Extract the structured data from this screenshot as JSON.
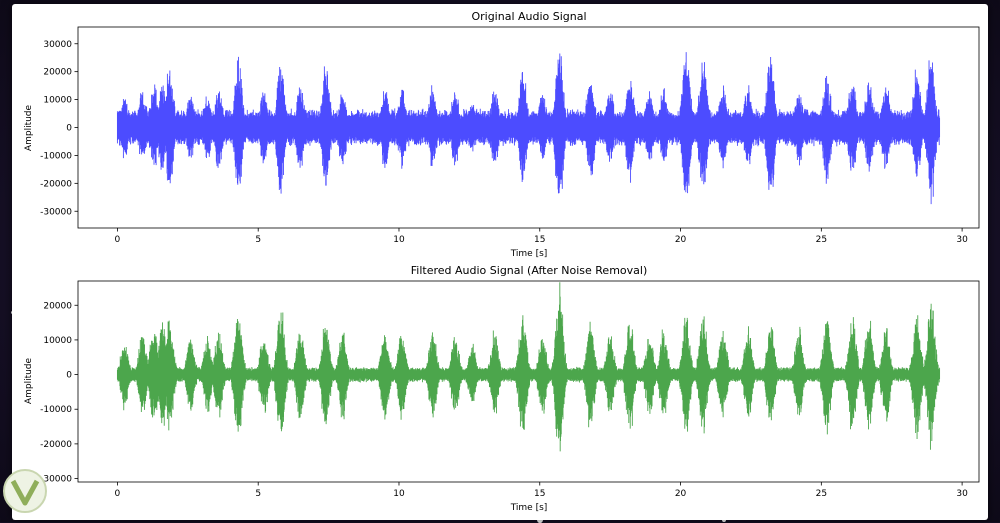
{
  "chart_data": [
    {
      "type": "line",
      "title": "Original Audio Signal",
      "xlabel": "Time [s]",
      "ylabel": "Amplitude",
      "xlim": [
        -1.4,
        30.6
      ],
      "ylim": [
        -36000,
        36000
      ],
      "xticks": [
        0,
        5,
        10,
        15,
        20,
        25,
        30
      ],
      "yticks": [
        -30000,
        -20000,
        -10000,
        0,
        10000,
        20000,
        30000
      ],
      "color": "#0000ff",
      "line_opacity": 0.7,
      "duration_s": 29.2,
      "noise_floor": 6000,
      "bursts": [
        {
          "t": 0.25,
          "amp": 12500
        },
        {
          "t": 0.9,
          "amp": 15000
        },
        {
          "t": 1.3,
          "amp": 17000
        },
        {
          "t": 1.6,
          "amp": 18500
        },
        {
          "t": 1.85,
          "amp": 25000
        },
        {
          "t": 2.6,
          "amp": 14500
        },
        {
          "t": 3.2,
          "amp": 14000
        },
        {
          "t": 3.6,
          "amp": 16000
        },
        {
          "t": 4.3,
          "amp": 26000
        },
        {
          "t": 5.2,
          "amp": 15000
        },
        {
          "t": 5.8,
          "amp": 26500
        },
        {
          "t": 6.5,
          "amp": 17000
        },
        {
          "t": 7.4,
          "amp": 25000
        },
        {
          "t": 8.0,
          "amp": 16000
        },
        {
          "t": 9.5,
          "amp": 17000
        },
        {
          "t": 10.1,
          "amp": 15500
        },
        {
          "t": 11.2,
          "amp": 17000
        },
        {
          "t": 12.0,
          "amp": 16000
        },
        {
          "t": 12.6,
          "amp": 11000
        },
        {
          "t": 13.4,
          "amp": 16500
        },
        {
          "t": 14.4,
          "amp": 24500
        },
        {
          "t": 15.1,
          "amp": 14000
        },
        {
          "t": 15.7,
          "amp": 33000
        },
        {
          "t": 16.8,
          "amp": 22000
        },
        {
          "t": 17.5,
          "amp": 15000
        },
        {
          "t": 18.2,
          "amp": 22000
        },
        {
          "t": 18.9,
          "amp": 14500
        },
        {
          "t": 19.4,
          "amp": 16000
        },
        {
          "t": 20.2,
          "amp": 32500
        },
        {
          "t": 20.8,
          "amp": 27500
        },
        {
          "t": 21.5,
          "amp": 17000
        },
        {
          "t": 22.4,
          "amp": 16500
        },
        {
          "t": 23.2,
          "amp": 30500
        },
        {
          "t": 24.2,
          "amp": 15500
        },
        {
          "t": 25.2,
          "amp": 22000
        },
        {
          "t": 26.1,
          "amp": 20000
        },
        {
          "t": 26.7,
          "amp": 19000
        },
        {
          "t": 27.3,
          "amp": 18500
        },
        {
          "t": 28.4,
          "amp": 24000
        },
        {
          "t": 28.9,
          "amp": 30000
        }
      ]
    },
    {
      "type": "line",
      "title": "Filtered Audio Signal (After Noise Removal)",
      "xlabel": "Time [s]",
      "ylabel": "Amplitude",
      "xlim": [
        -1.4,
        30.6
      ],
      "ylim": [
        -31000,
        27000
      ],
      "xticks": [
        0,
        5,
        10,
        15,
        20,
        25,
        30
      ],
      "yticks": [
        -30000,
        -20000,
        -10000,
        0,
        10000,
        20000
      ],
      "color": "#008000",
      "line_opacity": 0.7,
      "duration_s": 29.2,
      "noise_floor": 2000,
      "bursts": [
        {
          "t": 0.25,
          "amp": 11000
        },
        {
          "t": 0.9,
          "amp": 14000
        },
        {
          "t": 1.3,
          "amp": 16000
        },
        {
          "t": 1.6,
          "amp": 17000
        },
        {
          "t": 1.85,
          "amp": 17500
        },
        {
          "t": 2.6,
          "amp": 13000
        },
        {
          "t": 3.2,
          "amp": 12000
        },
        {
          "t": 3.6,
          "amp": 14000
        },
        {
          "t": 4.3,
          "amp": 22500
        },
        {
          "t": 5.2,
          "amp": 13000
        },
        {
          "t": 5.8,
          "amp": 22000
        },
        {
          "t": 6.5,
          "amp": 15000
        },
        {
          "t": 7.4,
          "amp": 18000
        },
        {
          "t": 8.0,
          "amp": 14000
        },
        {
          "t": 9.5,
          "amp": 15000
        },
        {
          "t": 10.1,
          "amp": 14000
        },
        {
          "t": 11.2,
          "amp": 14000
        },
        {
          "t": 12.0,
          "amp": 13000
        },
        {
          "t": 12.6,
          "amp": 10000
        },
        {
          "t": 13.4,
          "amp": 14000
        },
        {
          "t": 14.4,
          "amp": 21000
        },
        {
          "t": 15.1,
          "amp": 13000
        },
        {
          "t": 15.7,
          "amp": 27500
        },
        {
          "t": 16.8,
          "amp": 18000
        },
        {
          "t": 17.5,
          "amp": 13000
        },
        {
          "t": 18.2,
          "amp": 19000
        },
        {
          "t": 18.9,
          "amp": 13000
        },
        {
          "t": 19.4,
          "amp": 14500
        },
        {
          "t": 20.2,
          "amp": 19500
        },
        {
          "t": 20.8,
          "amp": 19000
        },
        {
          "t": 21.5,
          "amp": 15000
        },
        {
          "t": 22.4,
          "amp": 15000
        },
        {
          "t": 23.2,
          "amp": 16500
        },
        {
          "t": 24.2,
          "amp": 15500
        },
        {
          "t": 25.2,
          "amp": 19000
        },
        {
          "t": 26.1,
          "amp": 19000
        },
        {
          "t": 26.7,
          "amp": 18000
        },
        {
          "t": 27.3,
          "amp": 16000
        },
        {
          "t": 28.4,
          "amp": 20000
        },
        {
          "t": 28.9,
          "amp": 24000
        }
      ]
    }
  ]
}
